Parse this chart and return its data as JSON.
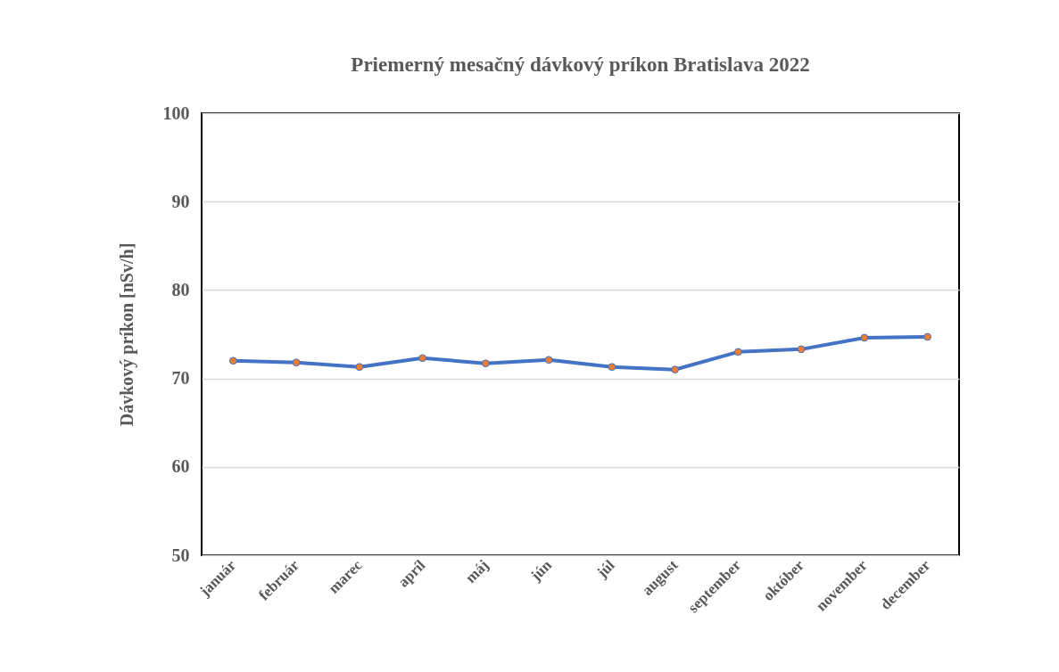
{
  "chart_data": {
    "type": "line",
    "title": "Priemerný mesačný dávkový príkon Bratislava 2022",
    "ylabel": "Dávkový  príkon  [nSv/h]",
    "categories": [
      "január",
      "február",
      "marec",
      "apríl",
      "máj",
      "jún",
      "júl",
      "august",
      "september",
      "október",
      "november",
      "december"
    ],
    "series": [
      {
        "color": "#4472c4",
        "values": [
          72.0,
          71.8,
          71.3,
          72.3,
          71.7,
          72.1,
          71.3,
          71.0,
          73.0,
          73.3,
          74.6,
          74.7
        ]
      }
    ],
    "marker": "circle",
    "ylim": [
      50,
      100
    ],
    "yticks": [
      50,
      60,
      70,
      80,
      90,
      100
    ],
    "grid": "y"
  }
}
